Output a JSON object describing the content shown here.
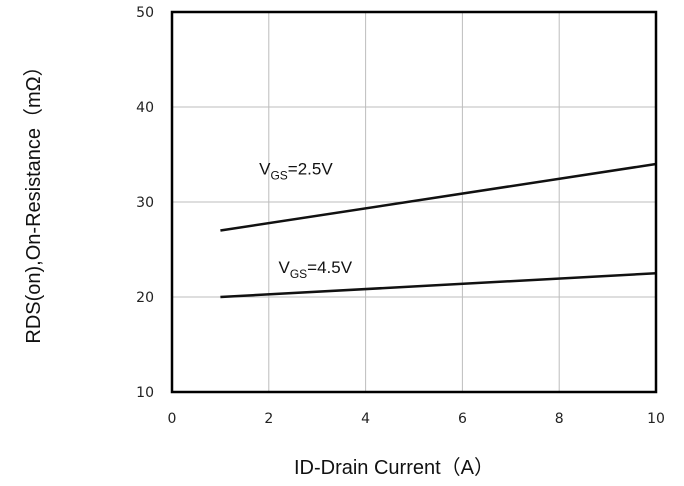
{
  "chart_data": {
    "type": "line",
    "xlabel": "ID-Drain Current（A）",
    "ylabel": "RDS(on),On-Resistance（mΩ）",
    "xlim": [
      0,
      10
    ],
    "ylim": [
      10,
      50
    ],
    "xticks": [
      "0",
      "2",
      "4",
      "6",
      "8",
      "10"
    ],
    "yticks": [
      "10",
      "20",
      "30",
      "40",
      "50"
    ],
    "grid": true,
    "series": [
      {
        "name": "VGS=2.5V",
        "label_main": "V",
        "label_sub": "GS",
        "label_rest": "=2.5V",
        "x": [
          1,
          10
        ],
        "y": [
          27,
          34
        ],
        "color": "#111111"
      },
      {
        "name": "VGS=4.5V",
        "label_main": "V",
        "label_sub": "GS",
        "label_rest": "=4.5V",
        "x": [
          1,
          10
        ],
        "y": [
          20,
          22.5
        ],
        "color": "#111111"
      }
    ]
  }
}
